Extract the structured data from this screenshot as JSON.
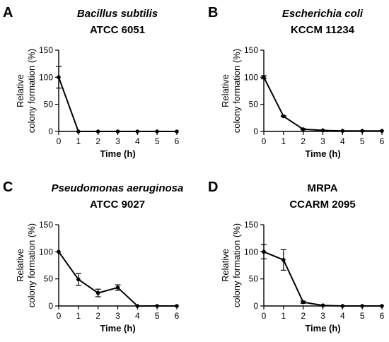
{
  "chart_data": [
    {
      "type": "line",
      "panel_label": "A",
      "title_line1": "Bacillus subtilis",
      "title_line1_italic": true,
      "title_line2": "ATCC 6051",
      "xlabel": "Time (h)",
      "ylabel_line1": "Relative",
      "ylabel_line2": "colony formation (%)",
      "x": [
        0,
        1,
        2,
        3,
        4,
        5,
        6
      ],
      "values": [
        100,
        0,
        0,
        0,
        0,
        0,
        0
      ],
      "error": [
        20,
        0,
        0,
        0,
        0,
        0,
        0
      ],
      "xlim": [
        0,
        6
      ],
      "ylim": [
        0,
        150
      ],
      "xticks": [
        "0",
        "1",
        "2",
        "3",
        "4",
        "5",
        "6"
      ],
      "yticks": [
        "0",
        "50",
        "100",
        "150"
      ]
    },
    {
      "type": "line",
      "panel_label": "B",
      "title_line1": "Escherichia coli",
      "title_line1_italic": true,
      "title_line2": "KCCM 11234",
      "xlabel": "Time (h)",
      "ylabel_line1": "Relative",
      "ylabel_line2": "colony formation (%)",
      "x": [
        0,
        1,
        2,
        3,
        4,
        5,
        6
      ],
      "values": [
        100,
        28,
        4,
        2,
        1,
        1,
        1
      ],
      "error": [
        3,
        1,
        1,
        0,
        0,
        0,
        0
      ],
      "xlim": [
        0,
        6
      ],
      "ylim": [
        0,
        150
      ],
      "xticks": [
        "0",
        "1",
        "2",
        "3",
        "4",
        "5",
        "6"
      ],
      "yticks": [
        "0",
        "50",
        "100",
        "150"
      ]
    },
    {
      "type": "line",
      "panel_label": "C",
      "title_line1": "Pseudomonas aeruginosa",
      "title_line1_italic": true,
      "title_line2": "ATCC 9027",
      "xlabel": "Time (h)",
      "ylabel_line1": "Relative",
      "ylabel_line2": "colony formation (%)",
      "x": [
        0,
        1,
        2,
        3,
        4,
        5,
        6
      ],
      "values": [
        100,
        49,
        24,
        34,
        0,
        0,
        0
      ],
      "error": [
        0,
        11,
        7,
        5,
        0,
        0,
        0
      ],
      "xlim": [
        0,
        6
      ],
      "ylim": [
        0,
        150
      ],
      "xticks": [
        "0",
        "1",
        "2",
        "3",
        "4",
        "5",
        "6"
      ],
      "yticks": [
        "0",
        "50",
        "100",
        "150"
      ]
    },
    {
      "type": "line",
      "panel_label": "D",
      "title_line1": "MRPA",
      "title_line1_italic": false,
      "title_line2": "CCARM 2095",
      "xlabel": "Time (h)",
      "ylabel_line1": "Relative",
      "ylabel_line2": "colony formation (%)",
      "x": [
        0,
        1,
        2,
        3,
        4,
        5,
        6
      ],
      "values": [
        100,
        85,
        7,
        1,
        0,
        0,
        0
      ],
      "error": [
        13,
        19,
        2,
        0,
        0,
        0,
        0
      ],
      "xlim": [
        0,
        6
      ],
      "ylim": [
        0,
        150
      ],
      "xticks": [
        "0",
        "1",
        "2",
        "3",
        "4",
        "5",
        "6"
      ],
      "yticks": [
        "0",
        "50",
        "100",
        "150"
      ]
    }
  ],
  "colors": {
    "line": "#000000",
    "axis": "#000000"
  }
}
